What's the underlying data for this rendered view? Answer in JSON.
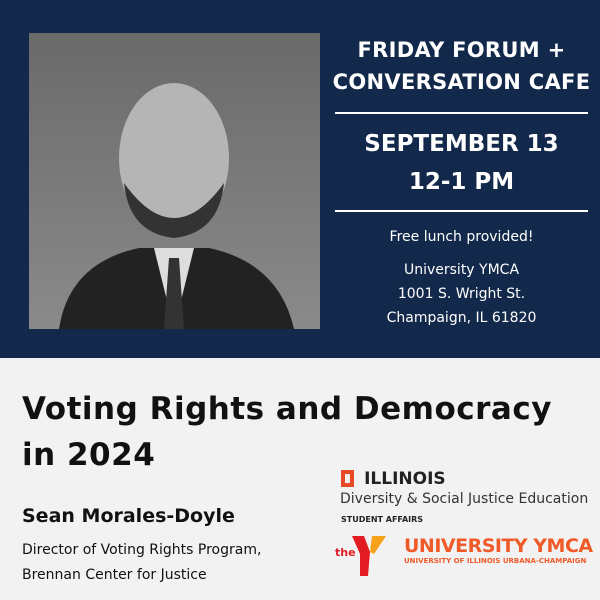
{
  "event": {
    "title_line1": "FRIDAY FORUM +",
    "title_line2": "CONVERSATION CAFE",
    "date": "SEPTEMBER 13",
    "time": "12-1 PM",
    "lunch": "Free lunch provided!",
    "venue": "University YMCA",
    "address1": "1001 S. Wright St.",
    "address2": "Champaign, IL 61820"
  },
  "talk": {
    "title_line1": "Voting Rights and Democracy",
    "title_line2": "in 2024",
    "speaker": "Sean Morales-Doyle",
    "role_line1": "Director of Voting Rights Program,",
    "role_line2": "Brennan Center for Justice"
  },
  "logos": {
    "illinois": "ILLINOIS",
    "dept": "Diversity & Social Justice Education",
    "unit": "STUDENT AFFAIRS",
    "ymca_the": "the",
    "ymca_name": "UNIVERSITY YMCA",
    "ymca_sub": "UNIVERSITY OF ILLINOIS URBANA-CHAMPAIGN"
  },
  "colors": {
    "navy": "#13294b",
    "illini_orange": "#e84a27",
    "ymca_red": "#e31b23"
  }
}
